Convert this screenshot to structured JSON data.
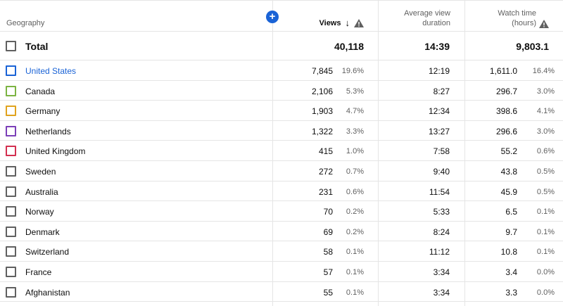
{
  "header": {
    "geography": "Geography",
    "views": "Views",
    "avg_view_duration_line1": "Average view",
    "avg_view_duration_line2": "duration",
    "watch_time_line1": "Watch time",
    "watch_time_line2": "(hours)"
  },
  "total": {
    "label": "Total",
    "views": "40,118",
    "avg_view_duration": "14:39",
    "watch_time": "9,803.1"
  },
  "rows": [
    {
      "name": "United States",
      "views": "7,845",
      "views_pct": "19.6%",
      "avd": "12:19",
      "wt": "1,611.0",
      "wt_pct": "16.4%",
      "color": "#1a63d6"
    },
    {
      "name": "Canada",
      "views": "2,106",
      "views_pct": "5.3%",
      "avd": "8:27",
      "wt": "296.7",
      "wt_pct": "3.0%",
      "color": "#7cb342"
    },
    {
      "name": "Germany",
      "views": "1,903",
      "views_pct": "4.7%",
      "avd": "12:34",
      "wt": "398.6",
      "wt_pct": "4.1%",
      "color": "#e0a31e"
    },
    {
      "name": "Netherlands",
      "views": "1,322",
      "views_pct": "3.3%",
      "avd": "13:27",
      "wt": "296.6",
      "wt_pct": "3.0%",
      "color": "#7b3fb8"
    },
    {
      "name": "United Kingdom",
      "views": "415",
      "views_pct": "1.0%",
      "avd": "7:58",
      "wt": "55.2",
      "wt_pct": "0.6%",
      "color": "#d32f50"
    },
    {
      "name": "Sweden",
      "views": "272",
      "views_pct": "0.7%",
      "avd": "9:40",
      "wt": "43.8",
      "wt_pct": "0.5%",
      "color": "#606060"
    },
    {
      "name": "Australia",
      "views": "231",
      "views_pct": "0.6%",
      "avd": "11:54",
      "wt": "45.9",
      "wt_pct": "0.5%",
      "color": "#606060"
    },
    {
      "name": "Norway",
      "views": "70",
      "views_pct": "0.2%",
      "avd": "5:33",
      "wt": "6.5",
      "wt_pct": "0.1%",
      "color": "#606060"
    },
    {
      "name": "Denmark",
      "views": "69",
      "views_pct": "0.2%",
      "avd": "8:24",
      "wt": "9.7",
      "wt_pct": "0.1%",
      "color": "#606060"
    },
    {
      "name": "Switzerland",
      "views": "58",
      "views_pct": "0.1%",
      "avd": "11:12",
      "wt": "10.8",
      "wt_pct": "0.1%",
      "color": "#606060"
    },
    {
      "name": "France",
      "views": "57",
      "views_pct": "0.1%",
      "avd": "3:34",
      "wt": "3.4",
      "wt_pct": "0.0%",
      "color": "#606060"
    },
    {
      "name": "Afghanistan",
      "views": "55",
      "views_pct": "0.1%",
      "avd": "3:34",
      "wt": "3.3",
      "wt_pct": "0.0%",
      "color": "#606060"
    }
  ],
  "icons": {
    "add": "plus-circle-icon",
    "sort": "arrow-down-icon",
    "warning": "warning-triangle-icon"
  }
}
